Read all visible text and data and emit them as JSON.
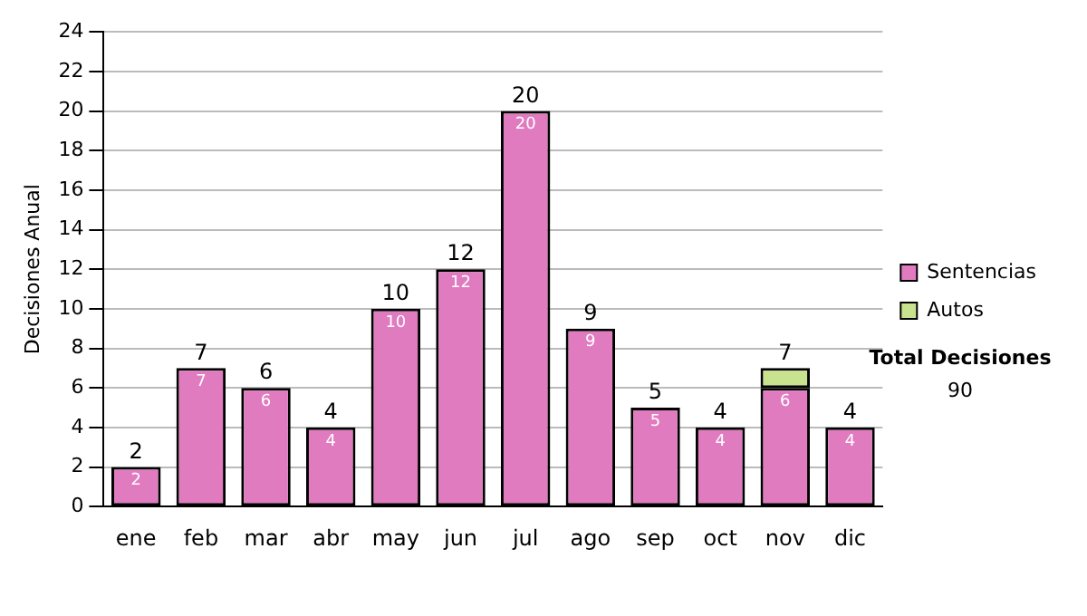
{
  "chart_data": {
    "type": "bar",
    "stacked": true,
    "ylabel": "Decisiones Anual",
    "categories": [
      "ene",
      "feb",
      "mar",
      "abr",
      "may",
      "jun",
      "jul",
      "ago",
      "sep",
      "oct",
      "nov",
      "dic"
    ],
    "series": [
      {
        "name": "Sentencias",
        "color": "#e07bc0",
        "values": [
          2,
          7,
          6,
          4,
          10,
          12,
          20,
          9,
          5,
          4,
          6,
          4
        ],
        "value_labels": [
          "2",
          "7",
          "6",
          "4",
          "10",
          "12",
          "20",
          "9",
          "5",
          "4",
          "6",
          "4"
        ]
      },
      {
        "name": "Autos",
        "color": "#c8e28e",
        "values": [
          0,
          0,
          0,
          0,
          0,
          0,
          0,
          0,
          0,
          0,
          1,
          0
        ]
      }
    ],
    "totals": [
      "2",
      "7",
      "6",
      "4",
      "10",
      "12",
      "20",
      "9",
      "5",
      "4",
      "7",
      "4"
    ],
    "ylim": [
      0,
      24
    ],
    "yticks": [
      0,
      2,
      4,
      6,
      8,
      10,
      12,
      14,
      16,
      18,
      20,
      22,
      24
    ],
    "grid": "y",
    "legend": "right",
    "annotations": [
      "Total Decisiones",
      "90"
    ]
  }
}
